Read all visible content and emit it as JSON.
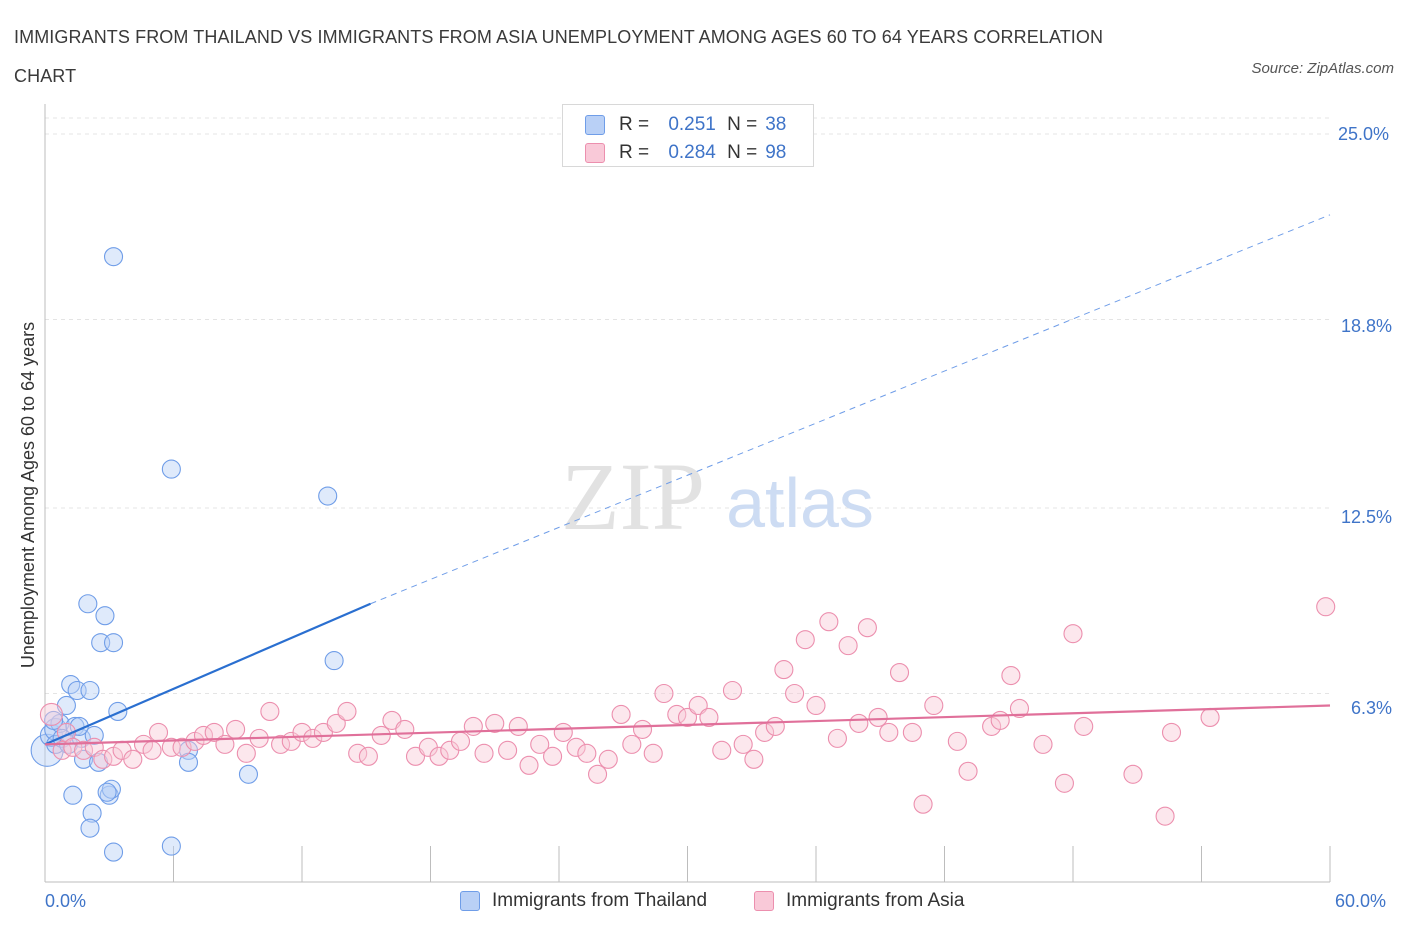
{
  "title": "IMMIGRANTS FROM THAILAND VS IMMIGRANTS FROM ASIA UNEMPLOYMENT AMONG AGES 60 TO 64 YEARS CORRELATION CHART",
  "source": "Source: ZipAtlas.com",
  "legend": {
    "r_label": "R =",
    "n_label": "N =",
    "entries": [
      {
        "name": "Immigrants from Thailand",
        "r": "0.251",
        "n": "38",
        "color": "#6f9de8"
      },
      {
        "name": "Immigrants from Asia",
        "r": "0.284",
        "n": "98",
        "color": "#ec8fae"
      }
    ]
  },
  "watermark": {
    "zip": "ZIP",
    "atlas": "atlas"
  },
  "chart_data": {
    "type": "scatter",
    "title": "IMMIGRANTS FROM THAILAND VS IMMIGRANTS FROM ASIA UNEMPLOYMENT AMONG AGES 60 TO 64 YEARS CORRELATION CHART",
    "xlabel": "",
    "ylabel": "Unemployment Among Ages 60 to 64 years",
    "xlim": [
      0,
      60
    ],
    "ylim": [
      0,
      25
    ],
    "x_tick_labels": [
      "0.0%",
      "60.0%"
    ],
    "y_ticks": [
      6.3,
      12.5,
      18.8,
      25.0
    ],
    "y_tick_labels": [
      "6.3%",
      "12.5%",
      "18.8%",
      "25.0%"
    ],
    "series": [
      {
        "name": "Immigrants from Thailand",
        "color": "#6f9de8",
        "line_color": "#2a6fd0",
        "trend": {
          "x0": 0,
          "y0": 4.6,
          "x1": 15.2,
          "y1": 9.3,
          "dash_to_x": 60,
          "dash_to_y": 22.3
        },
        "points": [
          [
            0.1,
            4.4,
            3
          ],
          [
            0.3,
            4.9,
            2
          ],
          [
            0.5,
            5.1,
            2
          ],
          [
            0.5,
            4.6,
            1
          ],
          [
            0.7,
            5.3,
            1
          ],
          [
            0.8,
            4.8,
            1
          ],
          [
            1.0,
            5.9,
            1
          ],
          [
            1.1,
            4.6,
            1
          ],
          [
            1.2,
            6.6,
            1
          ],
          [
            1.4,
            5.2,
            1
          ],
          [
            1.5,
            6.4,
            1
          ],
          [
            1.7,
            4.8,
            1
          ],
          [
            1.8,
            4.1,
            1
          ],
          [
            2.0,
            9.3,
            1
          ],
          [
            2.1,
            6.4,
            1
          ],
          [
            2.3,
            4.9,
            1
          ],
          [
            2.5,
            4.0,
            1
          ],
          [
            2.6,
            8.0,
            1
          ],
          [
            2.8,
            8.9,
            1
          ],
          [
            3.0,
            2.9,
            1
          ],
          [
            3.2,
            8.0,
            1
          ],
          [
            3.4,
            5.7,
            1
          ],
          [
            1.3,
            2.9,
            1
          ],
          [
            2.2,
            2.3,
            1
          ],
          [
            2.1,
            1.8,
            1
          ],
          [
            3.1,
            3.1,
            1
          ],
          [
            3.2,
            20.9,
            1
          ],
          [
            5.9,
            13.8,
            1
          ],
          [
            13.2,
            12.9,
            1
          ],
          [
            13.5,
            7.4,
            1
          ],
          [
            6.7,
            4.4,
            1
          ],
          [
            6.7,
            4.0,
            1
          ],
          [
            5.9,
            1.2,
            1
          ],
          [
            3.2,
            1.0,
            1
          ],
          [
            9.5,
            3.6,
            1
          ],
          [
            1.6,
            5.2,
            1
          ],
          [
            2.9,
            3.0,
            1
          ],
          [
            0.4,
            5.4,
            1
          ]
        ]
      },
      {
        "name": "Immigrants from Asia",
        "color": "#ec8fae",
        "line_color": "#e0709a",
        "trend": {
          "x0": 0,
          "y0": 4.6,
          "x1": 60,
          "y1": 5.9
        },
        "points": [
          [
            0.3,
            5.6,
            2
          ],
          [
            0.8,
            4.4,
            1
          ],
          [
            1.0,
            5.0,
            1
          ],
          [
            1.3,
            4.5,
            1
          ],
          [
            1.8,
            4.4,
            1
          ],
          [
            2.3,
            4.5,
            1
          ],
          [
            2.7,
            4.1,
            1
          ],
          [
            3.2,
            4.2,
            1
          ],
          [
            3.6,
            4.4,
            1
          ],
          [
            4.1,
            4.1,
            1
          ],
          [
            4.6,
            4.6,
            1
          ],
          [
            5.0,
            4.4,
            1
          ],
          [
            5.3,
            5.0,
            1
          ],
          [
            5.9,
            4.5,
            1
          ],
          [
            6.4,
            4.5,
            1
          ],
          [
            7.0,
            4.7,
            1
          ],
          [
            7.4,
            4.9,
            1
          ],
          [
            7.9,
            5.0,
            1
          ],
          [
            8.4,
            4.6,
            1
          ],
          [
            8.9,
            5.1,
            1
          ],
          [
            9.4,
            4.3,
            1
          ],
          [
            10.0,
            4.8,
            1
          ],
          [
            10.5,
            5.7,
            1
          ],
          [
            11.0,
            4.6,
            1
          ],
          [
            11.5,
            4.7,
            1
          ],
          [
            12.0,
            5.0,
            1
          ],
          [
            12.5,
            4.8,
            1
          ],
          [
            13.0,
            5.0,
            1
          ],
          [
            13.6,
            5.3,
            1
          ],
          [
            14.1,
            5.7,
            1
          ],
          [
            14.6,
            4.3,
            1
          ],
          [
            15.1,
            4.2,
            1
          ],
          [
            15.7,
            4.9,
            1
          ],
          [
            16.2,
            5.4,
            1
          ],
          [
            16.8,
            5.1,
            1
          ],
          [
            17.3,
            4.2,
            1
          ],
          [
            17.9,
            4.5,
            1
          ],
          [
            18.4,
            4.2,
            1
          ],
          [
            18.9,
            4.4,
            1
          ],
          [
            19.4,
            4.7,
            1
          ],
          [
            20.0,
            5.2,
            1
          ],
          [
            20.5,
            4.3,
            1
          ],
          [
            21.0,
            5.3,
            1
          ],
          [
            21.6,
            4.4,
            1
          ],
          [
            22.1,
            5.2,
            1
          ],
          [
            22.6,
            3.9,
            1
          ],
          [
            23.1,
            4.6,
            1
          ],
          [
            23.7,
            4.2,
            1
          ],
          [
            24.2,
            5.0,
            1
          ],
          [
            24.8,
            4.5,
            1
          ],
          [
            25.3,
            4.3,
            1
          ],
          [
            25.8,
            3.6,
            1
          ],
          [
            26.3,
            4.1,
            1
          ],
          [
            26.9,
            5.6,
            1
          ],
          [
            27.4,
            4.6,
            1
          ],
          [
            27.9,
            5.1,
            1
          ],
          [
            28.4,
            4.3,
            1
          ],
          [
            28.9,
            6.3,
            1
          ],
          [
            29.5,
            5.6,
            1
          ],
          [
            30.0,
            5.5,
            1
          ],
          [
            30.5,
            5.9,
            1
          ],
          [
            31.0,
            5.5,
            1
          ],
          [
            31.6,
            4.4,
            1
          ],
          [
            32.1,
            6.4,
            1
          ],
          [
            32.6,
            4.6,
            1
          ],
          [
            33.1,
            4.1,
            1
          ],
          [
            33.6,
            5.0,
            1
          ],
          [
            34.1,
            5.2,
            1
          ],
          [
            34.5,
            7.1,
            1
          ],
          [
            35.0,
            6.3,
            1
          ],
          [
            35.5,
            8.1,
            1
          ],
          [
            36.0,
            5.9,
            1
          ],
          [
            36.6,
            8.7,
            1
          ],
          [
            37.0,
            4.8,
            1
          ],
          [
            37.5,
            7.9,
            1
          ],
          [
            38.0,
            5.3,
            1
          ],
          [
            38.4,
            8.5,
            1
          ],
          [
            38.9,
            5.5,
            1
          ],
          [
            39.4,
            5.0,
            1
          ],
          [
            39.9,
            7.0,
            1
          ],
          [
            40.5,
            5.0,
            1
          ],
          [
            41.0,
            2.6,
            1
          ],
          [
            41.5,
            5.9,
            1
          ],
          [
            42.6,
            4.7,
            1
          ],
          [
            43.1,
            3.7,
            1
          ],
          [
            44.2,
            5.2,
            1
          ],
          [
            44.6,
            5.4,
            1
          ],
          [
            45.1,
            6.9,
            1
          ],
          [
            45.5,
            5.8,
            1
          ],
          [
            46.6,
            4.6,
            1
          ],
          [
            47.6,
            3.3,
            1
          ],
          [
            48.0,
            8.3,
            1
          ],
          [
            48.5,
            5.2,
            1
          ],
          [
            50.8,
            3.6,
            1
          ],
          [
            52.3,
            2.2,
            1
          ],
          [
            52.6,
            5.0,
            1
          ],
          [
            54.4,
            5.5,
            1
          ],
          [
            59.8,
            9.2,
            1
          ]
        ]
      }
    ]
  }
}
